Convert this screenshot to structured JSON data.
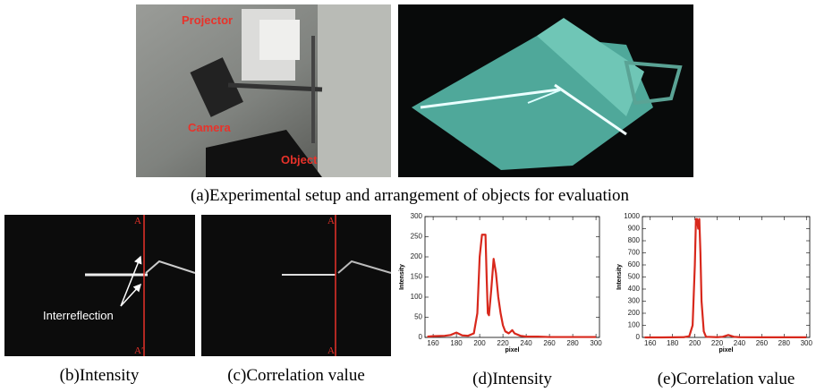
{
  "figure": {
    "setup_labels": [
      "Projector",
      "Camera",
      "Object"
    ],
    "caption_a": "(a)Experimental setup and arrangement of objects for evaluation",
    "panel_b": {
      "top_label": "A",
      "bottom_label": "A′",
      "annotation": "Interreflection",
      "caption": "(b)Intensity"
    },
    "panel_c": {
      "top_label": "A",
      "bottom_label": "A′",
      "caption": "(c)Correlation value"
    }
  },
  "chart_data": [
    {
      "type": "line",
      "title": "(d)Intensity",
      "xlabel": "pixel",
      "ylabel": "Intensity",
      "color": "#d8281c",
      "x": [
        155,
        160,
        170,
        175,
        180,
        185,
        190,
        195,
        198,
        200,
        202,
        205,
        206,
        207,
        208,
        210,
        212,
        214,
        216,
        218,
        220,
        222,
        225,
        228,
        230,
        235,
        240,
        250,
        260,
        280,
        300
      ],
      "values": [
        2,
        3,
        4,
        6,
        12,
        5,
        4,
        10,
        60,
        200,
        255,
        255,
        150,
        60,
        55,
        120,
        195,
        160,
        100,
        60,
        30,
        15,
        10,
        18,
        10,
        4,
        2,
        2,
        1,
        1,
        1
      ],
      "xlim": [
        153,
        303
      ],
      "ylim": [
        0,
        300
      ],
      "xticks": [
        160,
        180,
        200,
        220,
        240,
        260,
        280,
        300
      ],
      "yticks": [
        0,
        50,
        100,
        150,
        200,
        250,
        300
      ]
    },
    {
      "type": "line",
      "title": "(e)Correlation value",
      "xlabel": "pixel",
      "ylabel": "Intensity",
      "color": "#d8281c",
      "x": [
        155,
        170,
        190,
        195,
        198,
        200,
        201,
        202,
        203,
        204,
        205,
        206,
        208,
        210,
        220,
        225,
        230,
        235,
        240,
        260,
        300
      ],
      "values": [
        0,
        0,
        2,
        10,
        100,
        600,
        980,
        980,
        900,
        980,
        700,
        300,
        50,
        5,
        2,
        5,
        20,
        5,
        2,
        1,
        1
      ],
      "xlim": [
        153,
        303
      ],
      "ylim": [
        0,
        1000
      ],
      "xticks": [
        160,
        180,
        200,
        220,
        240,
        260,
        280,
        300
      ],
      "yticks": [
        0,
        100,
        200,
        300,
        400,
        500,
        600,
        700,
        800,
        900,
        1000
      ]
    }
  ]
}
